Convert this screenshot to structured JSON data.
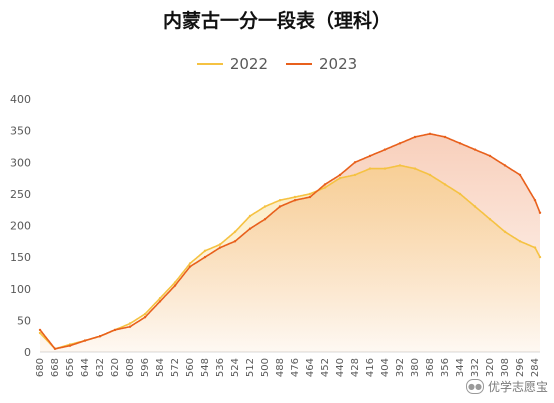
{
  "chart_data": {
    "type": "line",
    "title": "内蒙古一分一段表（理科）",
    "xlabel": "",
    "ylabel": "",
    "x_tick_labels": [
      "680",
      "668",
      "656",
      "644",
      "632",
      "620",
      "608",
      "596",
      "584",
      "572",
      "560",
      "548",
      "536",
      "524",
      "512",
      "500",
      "488",
      "476",
      "464",
      "452",
      "440",
      "428",
      "416",
      "404",
      "392",
      "380",
      "368",
      "356",
      "344",
      "332",
      "320",
      "308",
      "296",
      "284"
    ],
    "x_range": [
      680,
      280
    ],
    "ylim": [
      0,
      400
    ],
    "y_ticks": [
      0,
      50,
      100,
      150,
      200,
      250,
      300,
      350,
      400
    ],
    "grid": false,
    "legend_position": "top",
    "series": [
      {
        "name": "2022",
        "color": "#F5C242",
        "x": [
          680,
          668,
          656,
          644,
          632,
          620,
          608,
          596,
          584,
          572,
          560,
          548,
          536,
          524,
          512,
          500,
          488,
          476,
          464,
          452,
          440,
          428,
          416,
          404,
          392,
          380,
          368,
          356,
          344,
          332,
          320,
          308,
          296,
          284,
          280
        ],
        "values": [
          30,
          5,
          12,
          18,
          25,
          35,
          45,
          60,
          85,
          110,
          140,
          160,
          170,
          190,
          215,
          230,
          240,
          245,
          250,
          260,
          275,
          280,
          290,
          290,
          295,
          290,
          280,
          265,
          250,
          230,
          210,
          190,
          175,
          165,
          150
        ]
      },
      {
        "name": "2023",
        "color": "#E8601C",
        "x": [
          680,
          668,
          656,
          644,
          632,
          620,
          608,
          596,
          584,
          572,
          560,
          548,
          536,
          524,
          512,
          500,
          488,
          476,
          464,
          452,
          440,
          428,
          416,
          404,
          392,
          380,
          368,
          356,
          344,
          332,
          320,
          308,
          296,
          284,
          280
        ],
        "values": [
          35,
          5,
          10,
          18,
          25,
          35,
          40,
          55,
          80,
          105,
          135,
          150,
          165,
          175,
          195,
          210,
          230,
          240,
          245,
          265,
          280,
          300,
          310,
          320,
          330,
          340,
          345,
          340,
          330,
          320,
          310,
          295,
          280,
          240,
          220
        ]
      }
    ]
  },
  "watermark": {
    "text": "优学志愿宝",
    "icon": "wechat-icon"
  }
}
